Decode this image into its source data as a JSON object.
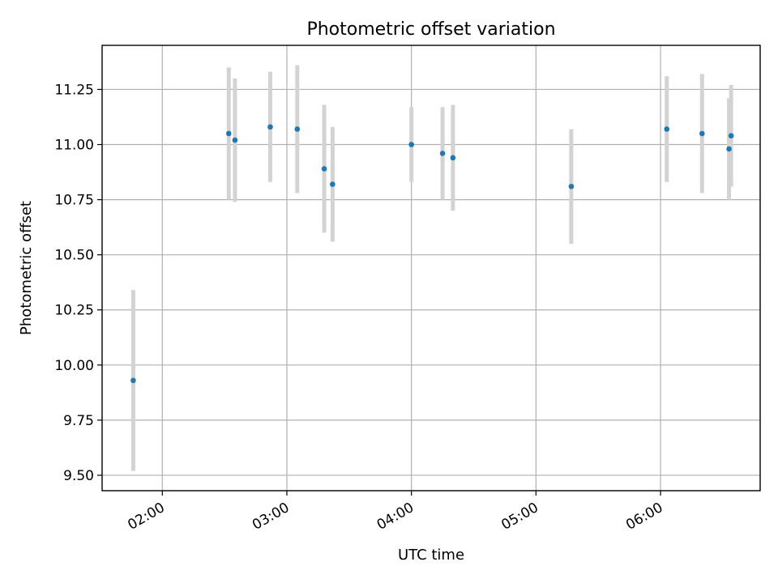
{
  "chart_data": {
    "type": "scatter",
    "title": "Photometric offset variation",
    "xlabel": "UTC time",
    "ylabel": "Photometric offset",
    "x_ticks": [
      "02:00",
      "03:00",
      "04:00",
      "05:00",
      "06:00"
    ],
    "y_ticks": [
      "9.50",
      "9.75",
      "10.00",
      "10.25",
      "10.50",
      "10.75",
      "11.00",
      "11.25"
    ],
    "xlim": [
      "01:31",
      "06:48"
    ],
    "ylim": [
      9.43,
      11.45
    ],
    "grid": true,
    "point_color": "#1f77b4",
    "errorbar_color": "#d3d3d3",
    "points": [
      {
        "x": "01:46",
        "y": 9.93,
        "err": 0.41
      },
      {
        "x": "02:32",
        "y": 11.05,
        "err": 0.3
      },
      {
        "x": "02:35",
        "y": 11.02,
        "err": 0.28
      },
      {
        "x": "02:52",
        "y": 11.08,
        "err": 0.25
      },
      {
        "x": "03:05",
        "y": 11.07,
        "err": 0.29
      },
      {
        "x": "03:18",
        "y": 10.89,
        "err": 0.29
      },
      {
        "x": "03:22",
        "y": 10.82,
        "err": 0.26
      },
      {
        "x": "04:00",
        "y": 11.0,
        "err": 0.17
      },
      {
        "x": "04:15",
        "y": 10.96,
        "err": 0.21
      },
      {
        "x": "04:20",
        "y": 10.94,
        "err": 0.24
      },
      {
        "x": "05:17",
        "y": 10.81,
        "err": 0.26
      },
      {
        "x": "06:03",
        "y": 11.07,
        "err": 0.24
      },
      {
        "x": "06:20",
        "y": 11.05,
        "err": 0.27
      },
      {
        "x": "06:33",
        "y": 10.98,
        "err": 0.23
      },
      {
        "x": "06:34",
        "y": 11.04,
        "err": 0.23
      }
    ]
  }
}
